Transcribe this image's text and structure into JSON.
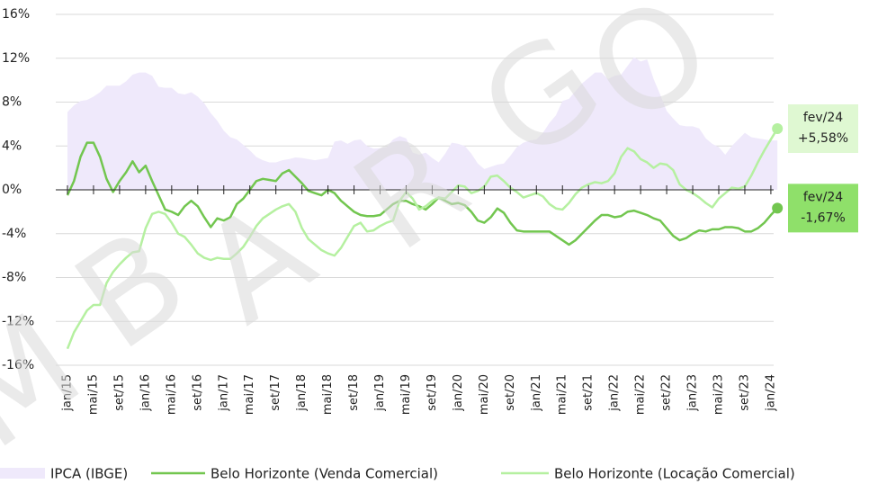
{
  "chart_data": {
    "type": "line",
    "watermark": "MBARGO",
    "legend": "bottom",
    "grid": true,
    "categories": [
      "jan/15",
      null,
      null,
      null,
      "mai/15",
      null,
      null,
      null,
      "set/15",
      null,
      null,
      null,
      "jan/16",
      null,
      null,
      null,
      "mai/16",
      null,
      null,
      null,
      "set/16",
      null,
      null,
      null,
      "jan/17",
      null,
      null,
      null,
      "mai/17",
      null,
      null,
      null,
      "set/17",
      null,
      null,
      null,
      "jan/18",
      null,
      null,
      null,
      "mai/18",
      null,
      null,
      null,
      "set/18",
      null,
      null,
      null,
      "jan/19",
      null,
      null,
      null,
      "mai/19",
      null,
      null,
      null,
      "set/19",
      null,
      null,
      null,
      "jan/20",
      null,
      null,
      null,
      "mai/20",
      null,
      null,
      null,
      "set/20",
      null,
      null,
      null,
      "jan/21",
      null,
      null,
      null,
      "mai/21",
      null,
      null,
      null,
      "set/21",
      null,
      null,
      null,
      "jan/22",
      null,
      null,
      null,
      "mai/22",
      null,
      null,
      null,
      "set/22",
      null,
      null,
      null,
      "jan/23",
      null,
      null,
      null,
      "mai/23",
      null,
      null,
      null,
      "set/23",
      null,
      null,
      null,
      "jan/24",
      null
    ],
    "ylim": [
      -16,
      16
    ],
    "yticks": [
      {
        "value": -16,
        "label": "-16%"
      },
      {
        "value": -12,
        "label": "-12%"
      },
      {
        "value": -8,
        "label": "-8%"
      },
      {
        "value": -4,
        "label": "-4%"
      },
      {
        "value": 0,
        "label": "0%"
      },
      {
        "value": 4,
        "label": "4%"
      },
      {
        "value": 8,
        "label": "8%"
      },
      {
        "value": 12,
        "label": "12%"
      },
      {
        "value": 16,
        "label": "16%"
      }
    ],
    "series": [
      {
        "name": "IPCA (IBGE)",
        "color": "#efe9fb",
        "area": true,
        "values": [
          7.1,
          7.7,
          8.1,
          8.2,
          8.5,
          8.9,
          9.5,
          9.5,
          9.5,
          9.9,
          10.5,
          10.7,
          10.7,
          10.4,
          9.4,
          9.3,
          9.3,
          8.8,
          8.7,
          8.9,
          8.5,
          7.9,
          7.0,
          6.3,
          5.4,
          4.8,
          4.6,
          4.1,
          3.6,
          3.0,
          2.7,
          2.5,
          2.5,
          2.7,
          2.8,
          2.95,
          2.9,
          2.8,
          2.7,
          2.8,
          2.9,
          4.4,
          4.5,
          4.2,
          4.5,
          4.6,
          4.0,
          3.75,
          3.8,
          3.9,
          4.6,
          4.9,
          4.7,
          3.4,
          3.2,
          3.4,
          2.9,
          2.5,
          3.3,
          4.3,
          4.2,
          4.0,
          3.3,
          2.4,
          1.9,
          2.1,
          2.3,
          2.4,
          3.1,
          3.9,
          4.3,
          4.5,
          4.6,
          5.2,
          6.1,
          6.8,
          8.1,
          8.3,
          9.0,
          9.7,
          10.2,
          10.7,
          10.7,
          10.1,
          10.4,
          10.5,
          11.3,
          12.1,
          11.7,
          11.9,
          10.1,
          8.7,
          7.2,
          6.5,
          5.9,
          5.8,
          5.8,
          5.6,
          4.7,
          4.2,
          3.9,
          3.2,
          4.0,
          4.6,
          5.2,
          4.8,
          4.7,
          4.6,
          4.5,
          4.5
        ]
      },
      {
        "name": "Belo Horizonte (Venda Comercial)",
        "color": "#72c64f",
        "values": [
          -0.5,
          0.8,
          3.0,
          4.3,
          4.3,
          3.0,
          1.0,
          -0.2,
          0.8,
          1.6,
          2.6,
          1.6,
          2.2,
          0.8,
          -0.5,
          -1.8,
          -2.0,
          -2.3,
          -1.5,
          -1.0,
          -1.5,
          -2.5,
          -3.4,
          -2.6,
          -2.8,
          -2.5,
          -1.3,
          -0.8,
          0.0,
          0.8,
          1.0,
          0.9,
          0.8,
          1.5,
          1.8,
          1.2,
          0.6,
          -0.1,
          -0.3,
          -0.5,
          0.0,
          -0.3,
          -1.0,
          -1.5,
          -2.0,
          -2.3,
          -2.4,
          -2.4,
          -2.3,
          -1.8,
          -1.3,
          -1.0,
          -1.0,
          -1.3,
          -1.5,
          -1.8,
          -1.3,
          -0.7,
          -1.0,
          -1.3,
          -1.2,
          -1.4,
          -2.0,
          -2.8,
          -3.0,
          -2.5,
          -1.7,
          -2.1,
          -3.0,
          -3.7,
          -3.8,
          -3.8,
          -3.8,
          -3.8,
          -3.8,
          -4.2,
          -4.6,
          -5.0,
          -4.6,
          -4.0,
          -3.4,
          -2.8,
          -2.3,
          -2.3,
          -2.5,
          -2.4,
          -2.0,
          -1.9,
          -2.1,
          -2.3,
          -2.6,
          -2.8,
          -3.5,
          -4.2,
          -4.6,
          -4.4,
          -4.0,
          -3.7,
          -3.8,
          -3.6,
          -3.6,
          -3.4,
          -3.4,
          -3.5,
          -3.8,
          -3.8,
          -3.5,
          -3.0,
          -2.3,
          -1.67
        ]
      },
      {
        "name": "Belo Horizonte (Locação Comercial)",
        "color": "#b5f0a0",
        "values": [
          -14.5,
          -13.0,
          -12.0,
          -11.0,
          -10.5,
          -10.5,
          -8.5,
          -7.5,
          -6.8,
          -6.2,
          -5.7,
          -5.6,
          -3.5,
          -2.2,
          -2.0,
          -2.2,
          -3.0,
          -4.0,
          -4.3,
          -5.0,
          -5.8,
          -6.2,
          -6.4,
          -6.2,
          -6.3,
          -6.3,
          -5.8,
          -5.2,
          -4.3,
          -3.3,
          -2.6,
          -2.2,
          -1.8,
          -1.5,
          -1.3,
          -2.0,
          -3.5,
          -4.5,
          -5.0,
          -5.5,
          -5.8,
          -6.0,
          -5.3,
          -4.3,
          -3.3,
          -3.0,
          -3.8,
          -3.7,
          -3.3,
          -3.0,
          -2.8,
          -1.0,
          -0.2,
          -0.8,
          -1.8,
          -1.5,
          -1.0,
          -0.7,
          -0.8,
          -0.2,
          0.4,
          0.3,
          -0.3,
          -0.1,
          0.3,
          1.2,
          1.3,
          0.8,
          0.2,
          -0.2,
          -0.7,
          -0.5,
          -0.3,
          -0.6,
          -1.3,
          -1.7,
          -1.8,
          -1.2,
          -0.4,
          0.2,
          0.5,
          0.7,
          0.6,
          0.8,
          1.5,
          3.0,
          3.8,
          3.5,
          2.8,
          2.5,
          2.0,
          2.4,
          2.3,
          1.8,
          0.5,
          0.0,
          -0.3,
          -0.7,
          -1.2,
          -1.6,
          -0.8,
          -0.3,
          0.2,
          0.1,
          0.3,
          1.3,
          2.5,
          3.6,
          4.6,
          5.58
        ]
      }
    ],
    "end_labels": [
      {
        "series": 2,
        "label": "fev/24",
        "value_label": "+5,58%",
        "color": "#dff8d2"
      },
      {
        "series": 1,
        "label": "fev/24",
        "value_label": "-1,67%",
        "color": "#8fe06a"
      }
    ]
  }
}
